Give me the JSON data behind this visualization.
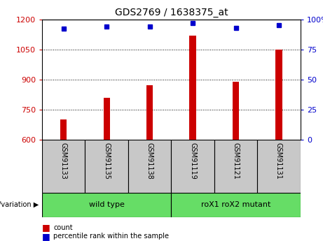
{
  "title": "GDS2769 / 1638375_at",
  "samples": [
    "GSM91133",
    "GSM91135",
    "GSM91138",
    "GSM91119",
    "GSM91121",
    "GSM91131"
  ],
  "bar_values": [
    700,
    810,
    870,
    1120,
    890,
    1050
  ],
  "dot_values": [
    92,
    94,
    94,
    97,
    93,
    95
  ],
  "ylim_left": [
    600,
    1200
  ],
  "ylim_right": [
    0,
    100
  ],
  "yticks_left": [
    600,
    750,
    900,
    1050,
    1200
  ],
  "yticks_right": [
    0,
    25,
    50,
    75,
    100
  ],
  "bar_color": "#cc0000",
  "dot_color": "#0000cc",
  "group1_label": "wild type",
  "group2_label": "roX1 roX2 mutant",
  "group_color": "#66dd66",
  "sample_cell_color": "#c8c8c8",
  "group_label_text": "genotype/variation",
  "legend_count_label": "count",
  "legend_pct_label": "percentile rank within the sample",
  "bar_width": 0.15
}
